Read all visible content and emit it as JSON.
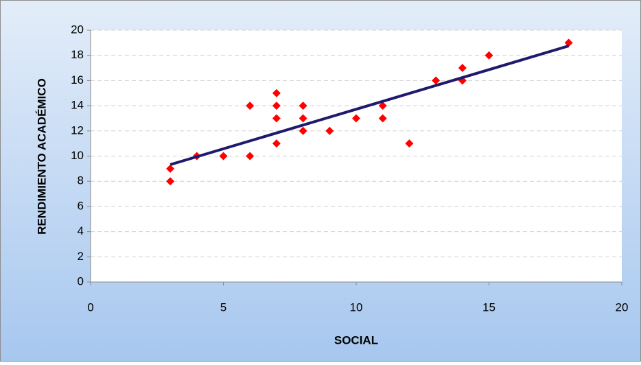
{
  "chart_data": {
    "type": "scatter",
    "x_label": "SOCIAL",
    "y_label": "RENDIMIENTO ACADÉMICO",
    "xlim": [
      0,
      20
    ],
    "xticks": [
      0,
      5,
      10,
      15,
      20
    ],
    "ylim": [
      0,
      20
    ],
    "yticks": [
      0,
      2,
      4,
      6,
      8,
      10,
      12,
      14,
      16,
      18,
      20
    ],
    "grid": true,
    "series": [
      {
        "type": "scatter",
        "color": "#ff0000",
        "x": [
          3,
          3,
          4,
          5,
          6,
          6,
          7,
          7,
          7,
          7,
          8,
          8,
          8,
          9,
          10,
          11,
          11,
          12,
          13,
          14,
          14,
          15,
          18
        ],
        "values": [
          9,
          8,
          10,
          10,
          14,
          10,
          15,
          14,
          13,
          11,
          14,
          13,
          12,
          12,
          13,
          14,
          13,
          11,
          16,
          17,
          16,
          18,
          19
        ]
      },
      {
        "type": "line",
        "color": "#1f1a6b",
        "x": [
          3,
          18
        ],
        "values": [
          9.32,
          18.75
        ]
      }
    ]
  }
}
